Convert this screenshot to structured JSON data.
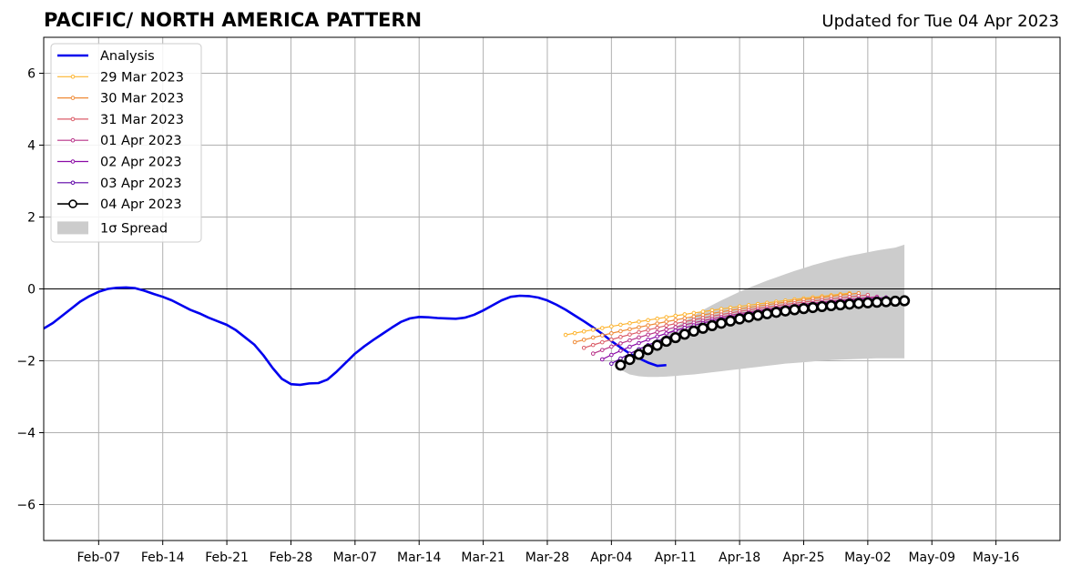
{
  "chart_data": {
    "type": "line",
    "title": "PACIFIC/ NORTH AMERICA PATTERN",
    "subtitle": "Updated for Tue 04 Apr 2023",
    "xlabel": "",
    "ylabel": "",
    "x_start": "2023-02-01",
    "x_end": "2023-05-23",
    "ylim": [
      -7,
      7
    ],
    "grid": true,
    "legend_position": "upper-left",
    "x_ticks": [
      "Feb-07",
      "Feb-14",
      "Feb-21",
      "Feb-28",
      "Mar-07",
      "Mar-14",
      "Mar-21",
      "Mar-28",
      "Apr-04",
      "Apr-11",
      "Apr-18",
      "Apr-25",
      "May-02",
      "May-09",
      "May-16"
    ],
    "y_ticks": [
      "−6",
      "−4",
      "−2",
      "0",
      "2",
      "4",
      "6"
    ],
    "analysis": {
      "name": "Analysis",
      "color": "#0000ee",
      "start": "2023-02-01",
      "values": [
        -1.1,
        -0.95,
        -0.75,
        -0.55,
        -0.35,
        -0.2,
        -0.08,
        0.0,
        0.03,
        0.04,
        0.02,
        -0.05,
        -0.14,
        -0.22,
        -0.32,
        -0.45,
        -0.58,
        -0.68,
        -0.8,
        -0.9,
        -1.0,
        -1.15,
        -1.35,
        -1.55,
        -1.85,
        -2.2,
        -2.5,
        -2.65,
        -2.67,
        -2.63,
        -2.62,
        -2.52,
        -2.3,
        -2.05,
        -1.8,
        -1.6,
        -1.42,
        -1.25,
        -1.08,
        -0.92,
        -0.82,
        -0.78,
        -0.79,
        -0.81,
        -0.82,
        -0.83,
        -0.8,
        -0.72,
        -0.6,
        -0.46,
        -0.32,
        -0.22,
        -0.19,
        -0.2,
        -0.24,
        -0.32,
        -0.44,
        -0.58,
        -0.74,
        -0.9,
        -1.07,
        -1.25,
        -1.45,
        -1.63,
        -1.8,
        -1.93,
        -2.05,
        -2.14,
        -2.12
      ]
    },
    "forecasts": [
      {
        "name": "29 Mar 2023",
        "color": "#fdb42f",
        "start": "2023-03-30",
        "y0": -1.28,
        "y1": -0.12,
        "curve": 0.3
      },
      {
        "name": "30 Mar 2023",
        "color": "#ef8a36",
        "start": "2023-03-31",
        "y0": -1.48,
        "y1": -0.12,
        "curve": 0.42
      },
      {
        "name": "31 Mar 2023",
        "color": "#db5c68",
        "start": "2023-04-01",
        "y0": -1.64,
        "y1": -0.17,
        "curve": 0.6
      },
      {
        "name": "01 Apr 2023",
        "color": "#b83289",
        "start": "2023-04-02",
        "y0": -1.8,
        "y1": -0.22,
        "curve": 0.8
      },
      {
        "name": "02 Apr 2023",
        "color": "#8b0aa5",
        "start": "2023-04-03",
        "y0": -1.96,
        "y1": -0.24,
        "curve": 1.0
      },
      {
        "name": "03 Apr 2023",
        "color": "#5c01a6",
        "start": "2023-04-04",
        "y0": -2.08,
        "y1": -0.27,
        "curve": 1.15
      },
      {
        "name": "04 Apr 2023",
        "color": "#000000",
        "start": "2023-04-05",
        "y0": -2.12,
        "y1": -0.33,
        "curve": 1.3
      }
    ],
    "spread": {
      "name": "1σ Spread",
      "color": "#cccccc",
      "start": "2023-04-05",
      "end": "2023-05-06",
      "upper": [
        -2.25,
        -2.05,
        -1.85,
        -1.65,
        -1.45,
        -1.25,
        -1.07,
        -0.9,
        -0.74,
        -0.59,
        -0.45,
        -0.32,
        -0.2,
        -0.08,
        0.03,
        0.13,
        0.23,
        0.32,
        0.41,
        0.5,
        0.58,
        0.66,
        0.73,
        0.8,
        0.86,
        0.92,
        0.97,
        1.02,
        1.07,
        1.11,
        1.15,
        1.23
      ],
      "lower": [
        -2.25,
        -2.38,
        -2.43,
        -2.45,
        -2.45,
        -2.44,
        -2.42,
        -2.4,
        -2.38,
        -2.35,
        -2.32,
        -2.29,
        -2.26,
        -2.23,
        -2.2,
        -2.17,
        -2.14,
        -2.11,
        -2.08,
        -2.06,
        -2.04,
        -2.02,
        -2.0,
        -1.98,
        -1.97,
        -1.96,
        -1.95,
        -1.94,
        -1.93,
        -1.93,
        -1.93,
        -1.93
      ]
    }
  }
}
